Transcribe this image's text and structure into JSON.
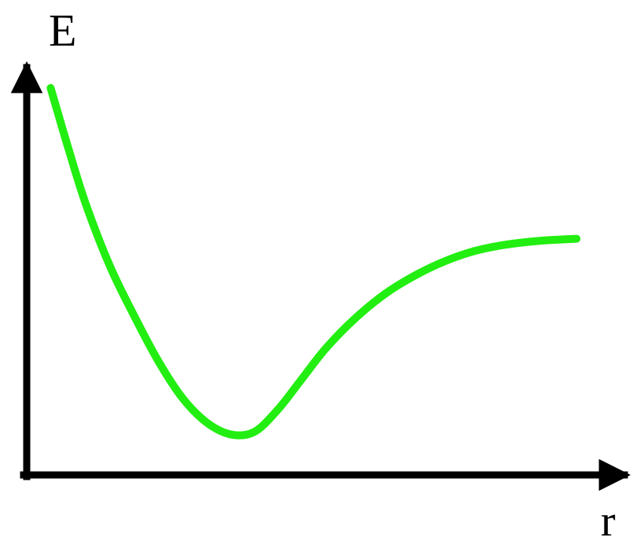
{
  "chart_data": {
    "type": "line",
    "title": "",
    "xlabel": "r",
    "ylabel": "E",
    "grid": false,
    "legend": "none",
    "xlim": [
      0,
      10
    ],
    "ylim": [
      0,
      10
    ],
    "colors": {
      "axis": "#000000",
      "curve": "#22ee11"
    },
    "series": [
      {
        "x": [
          0.4,
          0.7,
          1.0,
          1.4,
          1.8,
          2.2,
          2.6,
          3.0,
          3.4,
          3.8,
          4.2,
          4.6,
          5.0,
          5.5,
          6.0,
          6.5,
          7.0,
          7.5,
          8.0,
          8.6,
          9.2
        ],
        "y": [
          9.5,
          8.0,
          6.6,
          5.1,
          3.9,
          2.8,
          1.9,
          1.3,
          1.0,
          1.05,
          1.6,
          2.35,
          3.1,
          3.85,
          4.45,
          4.9,
          5.25,
          5.5,
          5.65,
          5.75,
          5.8
        ]
      }
    ]
  }
}
